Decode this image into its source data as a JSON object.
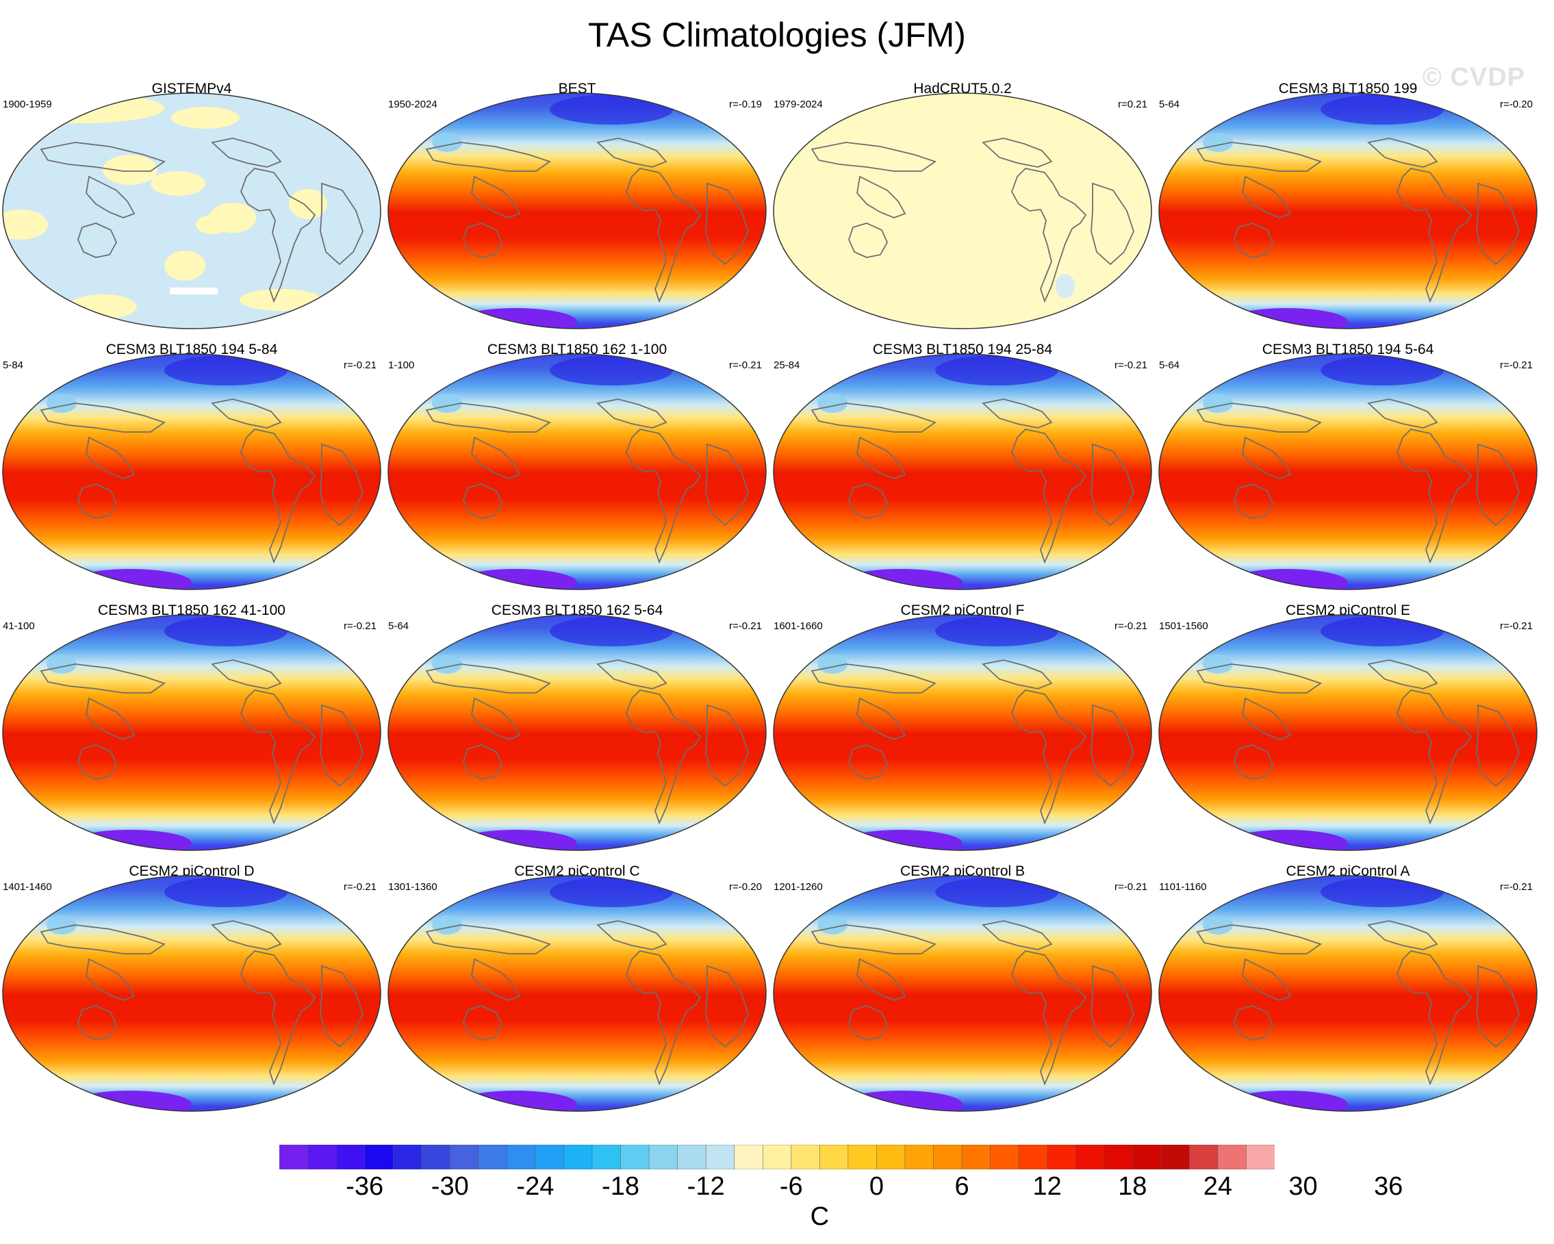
{
  "title": "TAS Climatologies (JFM)",
  "watermark": "© CVDP",
  "colorbar": {
    "labels": [
      "-36",
      "-30",
      "-24",
      "-18",
      "-12",
      "-6",
      "0",
      "6",
      "12",
      "18",
      "24",
      "30",
      "36"
    ],
    "units": "C",
    "colors": [
      "#7420ee",
      "#5a18f2",
      "#3e10f4",
      "#1a08f0",
      "#2a28e6",
      "#3848de",
      "#4662de",
      "#3d7aea",
      "#2e8ef2",
      "#21a0f6",
      "#1cb2f4",
      "#2ec2f2",
      "#5fccf2",
      "#8cd4ee",
      "#a8dcee",
      "#c2e4f0",
      "#fff4c0",
      "#fff1a0",
      "#ffe570",
      "#ffd845",
      "#ffca22",
      "#ffba12",
      "#ffa406",
      "#ff8e00",
      "#ff7700",
      "#ff5d00",
      "#ff4000",
      "#f82400",
      "#ee1000",
      "#e00800",
      "#d20600",
      "#c40a06",
      "#d84040",
      "#ee7474",
      "#f8a8a8"
    ]
  },
  "panels": [
    {
      "title": "GISTEMPv4",
      "period": "1900-1959",
      "corr": "",
      "style": "anomaly"
    },
    {
      "title": "BEST",
      "period": "1950-2024",
      "corr": "r=-0.19",
      "style": "clim"
    },
    {
      "title": "HadCRUT5.0.2",
      "period": "1979-2024",
      "corr": "r=0.21",
      "style": "flat"
    },
    {
      "title": "CESM3 BLT1850 199",
      "period": "5-64",
      "corr": "r=-0.20",
      "style": "clim"
    },
    {
      "title": "CESM3 BLT1850 194 5-84",
      "period": "5-84",
      "corr": "r=-0.21",
      "style": "clim"
    },
    {
      "title": "CESM3 BLT1850 162 1-100",
      "period": "1-100",
      "corr": "r=-0.21",
      "style": "clim"
    },
    {
      "title": "CESM3 BLT1850 194 25-84",
      "period": "25-84",
      "corr": "r=-0.21",
      "style": "clim"
    },
    {
      "title": "CESM3 BLT1850 194 5-64",
      "period": "5-64",
      "corr": "r=-0.21",
      "style": "clim"
    },
    {
      "title": "CESM3 BLT1850 162 41-100",
      "period": "41-100",
      "corr": "r=-0.21",
      "style": "clim"
    },
    {
      "title": "CESM3 BLT1850 162 5-64",
      "period": "5-64",
      "corr": "r=-0.21",
      "style": "clim"
    },
    {
      "title": "CESM2 piControl F",
      "period": "1601-1660",
      "corr": "r=-0.21",
      "style": "clim"
    },
    {
      "title": "CESM2 piControl E",
      "period": "1501-1560",
      "corr": "r=-0.21",
      "style": "clim"
    },
    {
      "title": "CESM2 piControl D",
      "period": "1401-1460",
      "corr": "r=-0.21",
      "style": "clim"
    },
    {
      "title": "CESM2 piControl C",
      "period": "1301-1360",
      "corr": "r=-0.20",
      "style": "clim"
    },
    {
      "title": "CESM2 piControl B",
      "period": "1201-1260",
      "corr": "r=-0.21",
      "style": "clim"
    },
    {
      "title": "CESM2 piControl A",
      "period": "1101-1160",
      "corr": "r=-0.21",
      "style": "clim"
    }
  ]
}
